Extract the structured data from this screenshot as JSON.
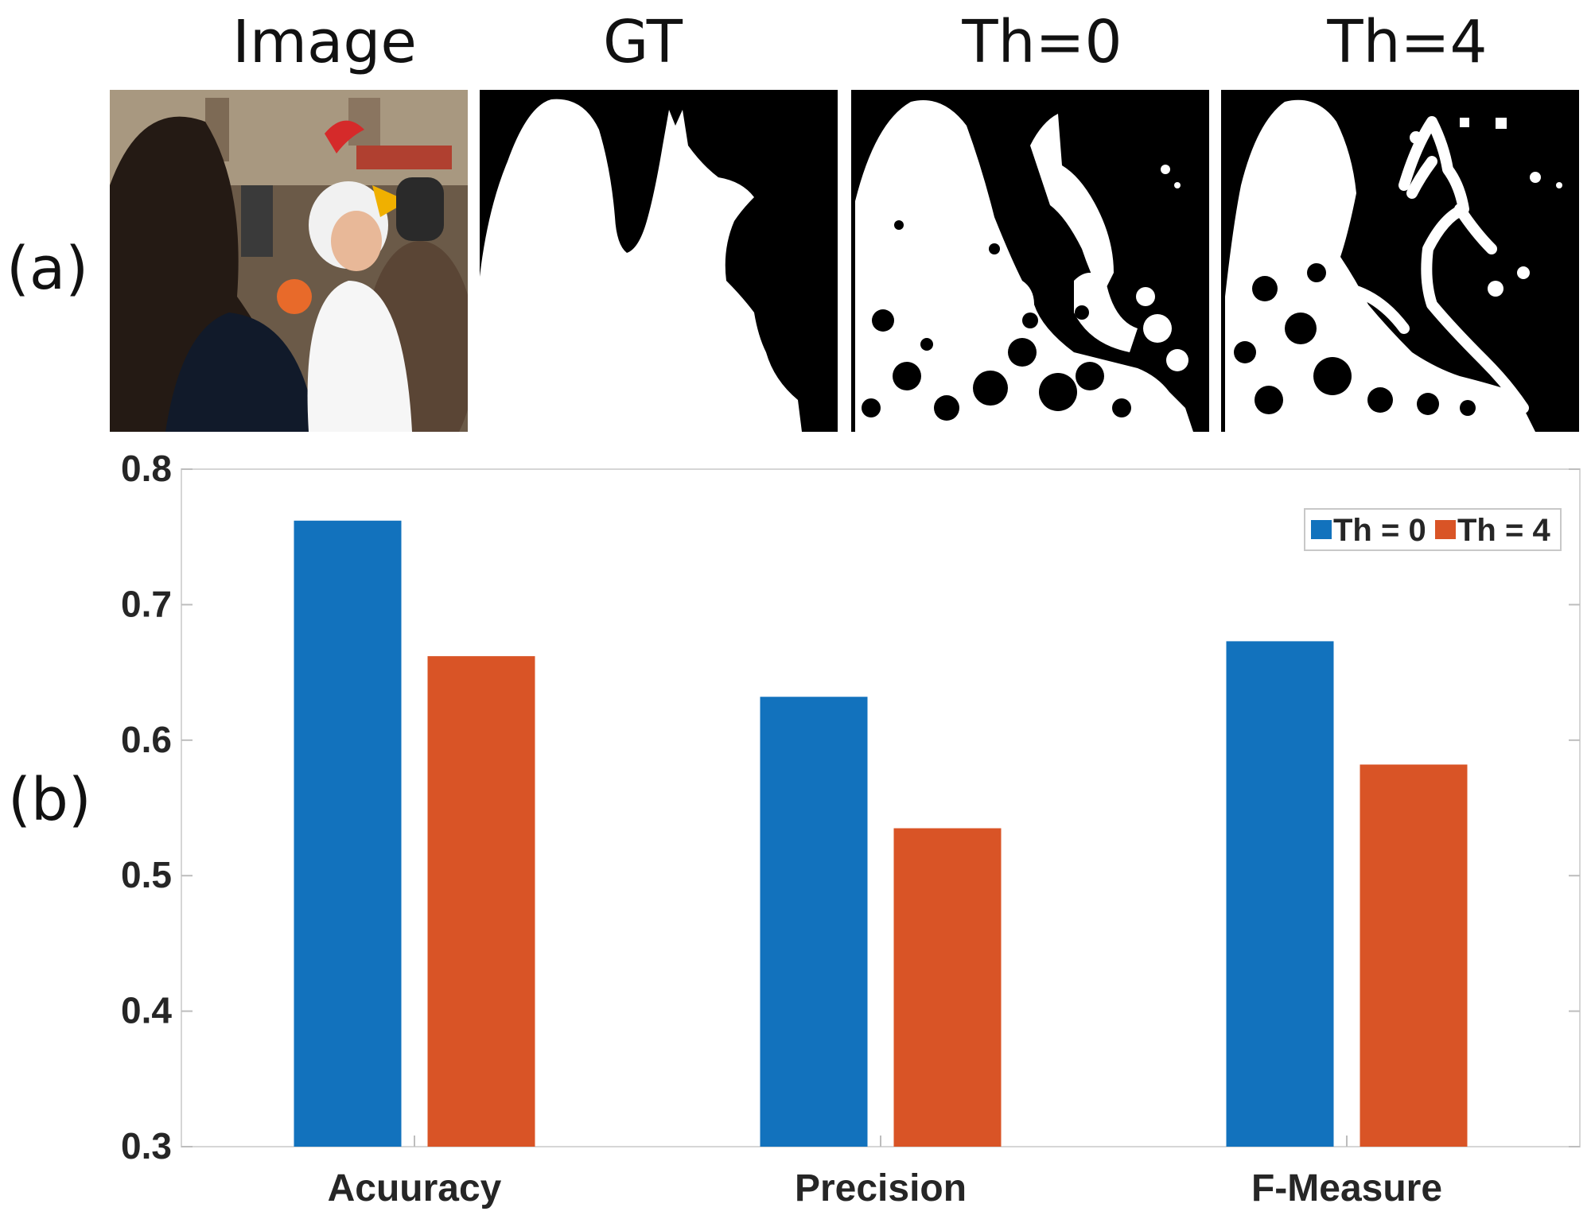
{
  "figure": {
    "panel_a_label": "(a)",
    "panel_b_label": "(b)",
    "image_titles": [
      "Image",
      "GT",
      "Th=0",
      "Th=4"
    ]
  },
  "chart_data": {
    "type": "bar",
    "categories": [
      "Acuuracy",
      "Precision",
      "F-Measure"
    ],
    "series": [
      {
        "name": "Th = 0",
        "color": "#1272BD",
        "values": [
          0.762,
          0.632,
          0.673
        ]
      },
      {
        "name": "Th = 4",
        "color": "#D95426",
        "values": [
          0.662,
          0.535,
          0.582
        ]
      }
    ],
    "yticks": [
      "0.3",
      "0.4",
      "0.5",
      "0.6",
      "0.7",
      "0.8"
    ],
    "ylim": [
      0.3,
      0.8
    ],
    "legend_position": "top-right",
    "grid": false
  }
}
